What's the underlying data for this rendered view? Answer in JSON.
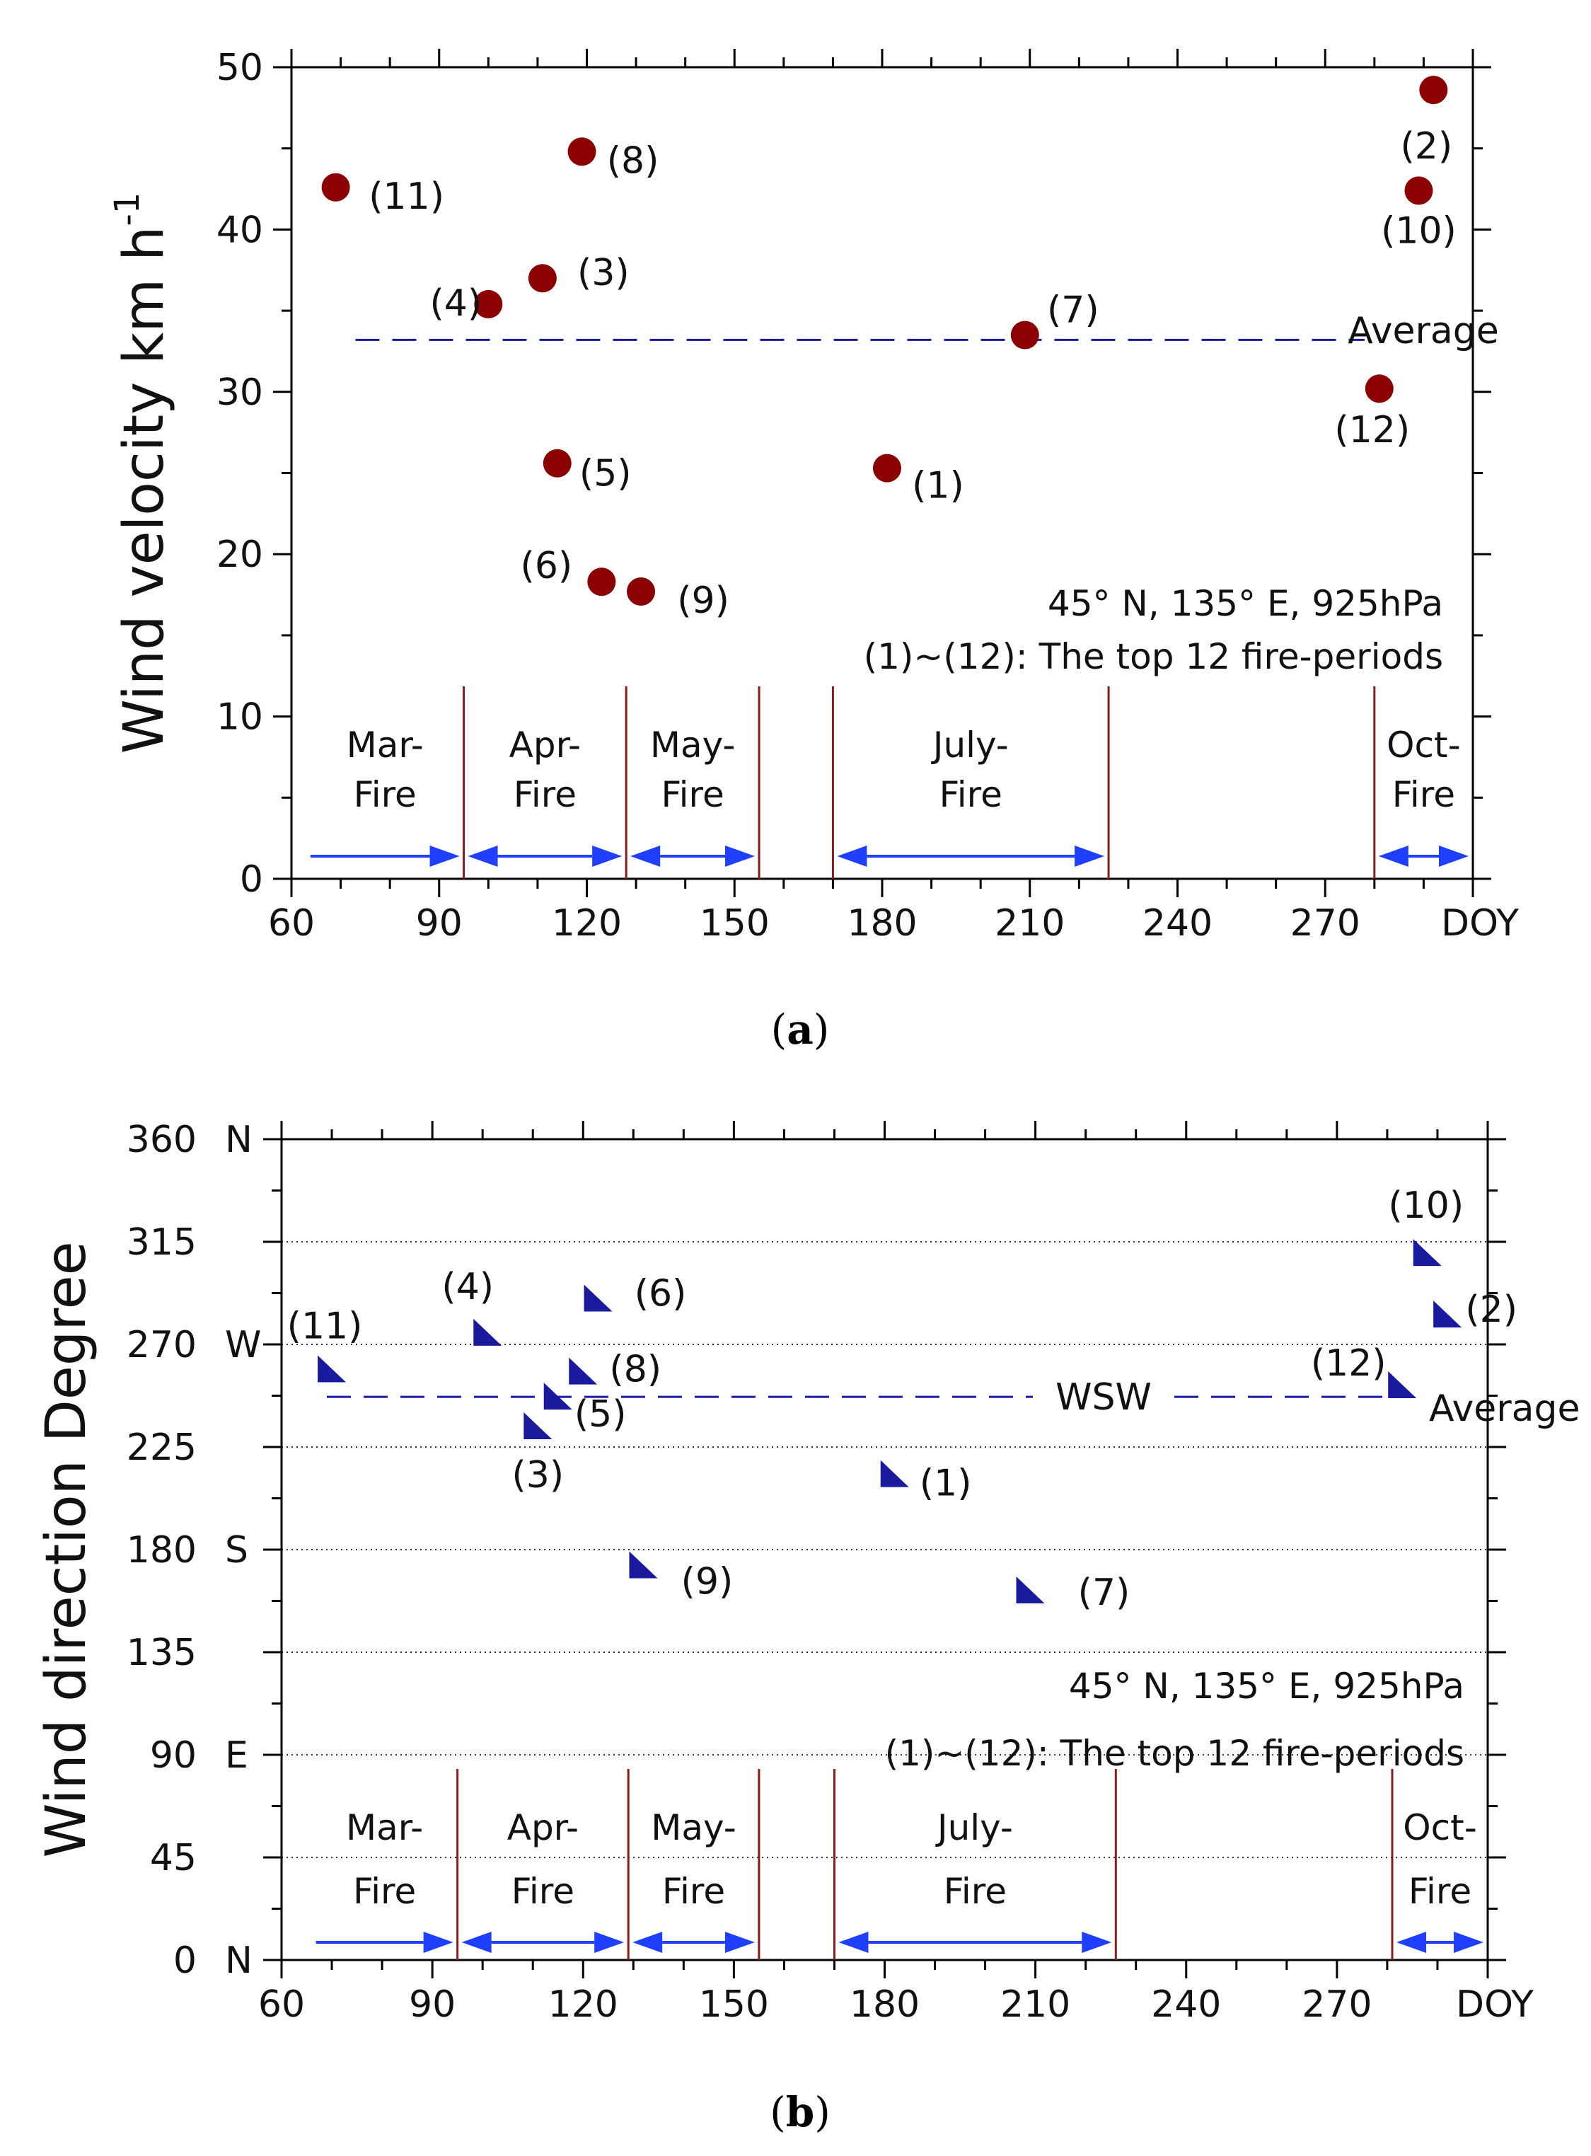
{
  "figure": {
    "caption_a_prefix": "(",
    "caption_a_letter": "a",
    "caption_a_suffix": ")",
    "caption_b_prefix": "(",
    "caption_b_letter": "b",
    "caption_b_suffix": ")"
  },
  "chart_data": [
    {
      "id": "a",
      "type": "scatter",
      "title": "",
      "ylabel_main": "Wind velocity  km h",
      "ylabel_sup": "-1",
      "xlabel": "DOY",
      "xlim": [
        60,
        300
      ],
      "ylim": [
        0,
        50
      ],
      "x_ticks": [
        60,
        90,
        120,
        150,
        180,
        210,
        240,
        270
      ],
      "x_tick_labels": [
        "60",
        "90",
        "120",
        "150",
        "180",
        "210",
        "240",
        "270"
      ],
      "y_ticks": [
        0,
        10,
        20,
        30,
        40,
        50
      ],
      "y_tick_labels": [
        "0",
        "10",
        "20",
        "30",
        "40",
        "50"
      ],
      "marker_color": "#8b0000",
      "points": [
        {
          "label": "(1)",
          "x": 181,
          "y": 25.3
        },
        {
          "label": "(2)",
          "x": 292,
          "y": 48.6
        },
        {
          "label": "(3)",
          "x": 111,
          "y": 37.0
        },
        {
          "label": "(4)",
          "x": 100,
          "y": 35.4
        },
        {
          "label": "(5)",
          "x": 114,
          "y": 25.6
        },
        {
          "label": "(6)",
          "x": 123,
          "y": 18.3
        },
        {
          "label": "(7)",
          "x": 209,
          "y": 33.5
        },
        {
          "label": "(8)",
          "x": 119,
          "y": 44.8
        },
        {
          "label": "(9)",
          "x": 131,
          "y": 17.7
        },
        {
          "label": "(10)",
          "x": 289,
          "y": 42.4
        },
        {
          "label": "(11)",
          "x": 69,
          "y": 42.6
        },
        {
          "label": "(12)",
          "x": 281,
          "y": 30.2
        }
      ],
      "average": {
        "value": 33.2,
        "x_from": 73,
        "x_to": 278,
        "label": "Average"
      },
      "location_note": "45° N, 135° E, 925hPa",
      "periods_note": "(1)~(12): The top 12 fire-periods",
      "periods": [
        {
          "line1": "Mar-",
          "line2": "Fire",
          "x_start": 63,
          "x_end": 95,
          "arrow": "right",
          "dividers": [
            95
          ]
        },
        {
          "line1": "Apr-",
          "line2": "Fire",
          "x_start": 95,
          "x_end": 128,
          "arrow": "both",
          "dividers": [
            128
          ]
        },
        {
          "line1": "May-",
          "line2": "Fire",
          "x_start": 128,
          "x_end": 155,
          "arrow": "both",
          "dividers": [
            155
          ]
        },
        {
          "line1": "July-",
          "line2": "Fire",
          "x_start": 170,
          "x_end": 226,
          "arrow": "both",
          "dividers": [
            170,
            226
          ]
        },
        {
          "line1": "Oct-",
          "line2": "Fire",
          "x_start": 280,
          "x_end": 300,
          "arrow": "both",
          "dividers": [
            280
          ]
        }
      ]
    },
    {
      "id": "b",
      "type": "scatter",
      "title": "",
      "ylabel_main": "Wind direction  Degree",
      "ylabel_sup": "",
      "xlabel": "DOY",
      "xlim": [
        60,
        300
      ],
      "ylim": [
        0,
        360
      ],
      "x_ticks": [
        60,
        90,
        120,
        150,
        180,
        210,
        240,
        270
      ],
      "x_tick_labels": [
        "60",
        "90",
        "120",
        "150",
        "180",
        "210",
        "240",
        "270"
      ],
      "y_ticks": [
        0,
        45,
        90,
        135,
        180,
        225,
        270,
        315,
        360
      ],
      "y_tick_labels": [
        "0",
        "45",
        "90",
        "135",
        "180",
        "225",
        "270",
        "315",
        "360"
      ],
      "y_compass_labels": [
        {
          "value": 0,
          "label": "N"
        },
        {
          "value": 90,
          "label": "E"
        },
        {
          "value": 180,
          "label": "S"
        },
        {
          "value": 270,
          "label": "W"
        },
        {
          "value": 360,
          "label": "N"
        }
      ],
      "grid_dotted_at": [
        45,
        90,
        135,
        180,
        225,
        270,
        315
      ],
      "marker_color": "#1a1a9e",
      "points": [
        {
          "label": "(1)",
          "x": 182,
          "y": 213
        },
        {
          "label": "(2)",
          "x": 292,
          "y": 283
        },
        {
          "label": "(3)",
          "x": 111,
          "y": 234
        },
        {
          "label": "(4)",
          "x": 101,
          "y": 275
        },
        {
          "label": "(5)",
          "x": 115,
          "y": 247
        },
        {
          "label": "(6)",
          "x": 123,
          "y": 290
        },
        {
          "label": "(7)",
          "x": 209,
          "y": 162
        },
        {
          "label": "(8)",
          "x": 120,
          "y": 258
        },
        {
          "label": "(9)",
          "x": 132,
          "y": 173
        },
        {
          "label": "(10)",
          "x": 288,
          "y": 310
        },
        {
          "label": "(11)",
          "x": 70,
          "y": 259
        },
        {
          "label": "(12)",
          "x": 283,
          "y": 252
        }
      ],
      "average": {
        "value": 247,
        "x_from": 69,
        "x_to": 280,
        "label": "Average",
        "direction_label": "WSW"
      },
      "location_note": "45° N, 135° E, 925hPa",
      "periods_note": "(1)~(12): The top 12 fire-periods",
      "periods": [
        {
          "line1": "Mar-",
          "line2": "Fire",
          "x_start": 66,
          "x_end": 95,
          "arrow": "right",
          "dividers": [
            95
          ]
        },
        {
          "line1": "Apr-",
          "line2": "Fire",
          "x_start": 95,
          "x_end": 129,
          "arrow": "both",
          "dividers": [
            129
          ]
        },
        {
          "line1": "May-",
          "line2": "Fire",
          "x_start": 129,
          "x_end": 155,
          "arrow": "both",
          "dividers": [
            155
          ]
        },
        {
          "line1": "July-",
          "line2": "Fire",
          "x_start": 170,
          "x_end": 226,
          "arrow": "both",
          "dividers": [
            170,
            226
          ]
        },
        {
          "line1": "Oct-",
          "line2": "Fire",
          "x_start": 281,
          "x_end": 300,
          "arrow": "both",
          "dividers": [
            281
          ]
        }
      ]
    }
  ]
}
